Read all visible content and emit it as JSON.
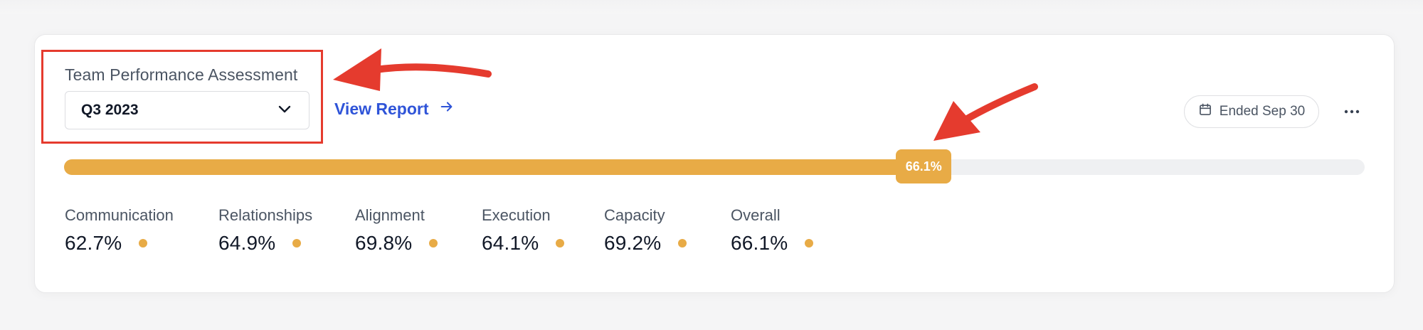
{
  "assessment": {
    "label": "Team Performance Assessment",
    "selected_quarter": "Q3 2023"
  },
  "view_report": {
    "label": "View Report"
  },
  "ended": {
    "label": "Ended Sep 30"
  },
  "progress": {
    "value_pct": 66.1,
    "label": "66.1%"
  },
  "metrics": [
    {
      "label": "Communication",
      "value": "62.7%"
    },
    {
      "label": "Relationships",
      "value": "64.9%"
    },
    {
      "label": "Alignment",
      "value": "69.8%"
    },
    {
      "label": "Execution",
      "value": "64.1%"
    },
    {
      "label": "Capacity",
      "value": "69.2%"
    },
    {
      "label": "Overall",
      "value": "66.1%"
    }
  ],
  "colors": {
    "accent": "#e8ab46",
    "link": "#2f54d8",
    "annotation_red": "#e53b2e",
    "track": "#eff0f2"
  },
  "icons": {
    "select": "chevron-down-icon",
    "report_link": "arrow-right-icon",
    "ended": "calendar-icon",
    "menu": "more-horizontal-icon"
  }
}
